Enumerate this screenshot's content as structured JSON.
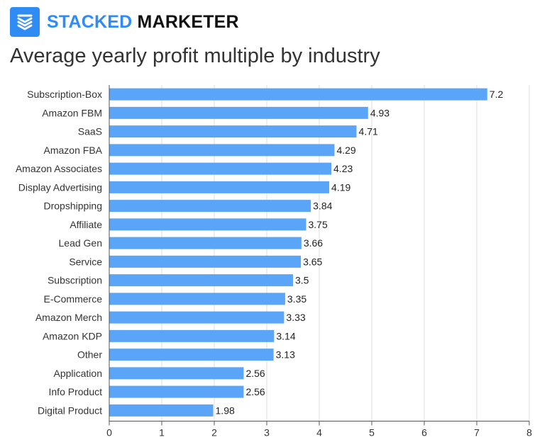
{
  "brand": {
    "accent": "STACKED",
    "main": "MARKETER",
    "color": "#2f8cf5"
  },
  "chart_data": {
    "type": "bar",
    "orientation": "horizontal",
    "title": "Average yearly profit multiple by industry",
    "xlabel": "",
    "ylabel": "",
    "xlim": [
      0,
      8
    ],
    "xticks": [
      0,
      1,
      2,
      3,
      4,
      5,
      6,
      7,
      8
    ],
    "grid": true,
    "bar_color": "#5aa5f7",
    "categories": [
      "Subscription-Box",
      "Amazon FBM",
      "SaaS",
      "Amazon FBA",
      "Amazon Associates",
      "Display Advertising",
      "Dropshipping",
      "Affiliate",
      "Lead Gen",
      "Service",
      "Subscription",
      "E-Commerce",
      "Amazon Merch",
      "Amazon KDP",
      "Other",
      "Application",
      "Info Product",
      "Digital Product"
    ],
    "values": [
      7.2,
      4.93,
      4.71,
      4.29,
      4.23,
      4.19,
      3.84,
      3.75,
      3.66,
      3.65,
      3.5,
      3.35,
      3.33,
      3.14,
      3.13,
      2.56,
      2.56,
      1.98
    ],
    "value_labels": [
      "7.2",
      "4.93",
      "4.71",
      "4.29",
      "4.23",
      "4.19",
      "3.84",
      "3.75",
      "3.66",
      "3.65",
      "3.5",
      "3.35",
      "3.33",
      "3.14",
      "3.13",
      "2.56",
      "2.56",
      "1.98"
    ]
  }
}
